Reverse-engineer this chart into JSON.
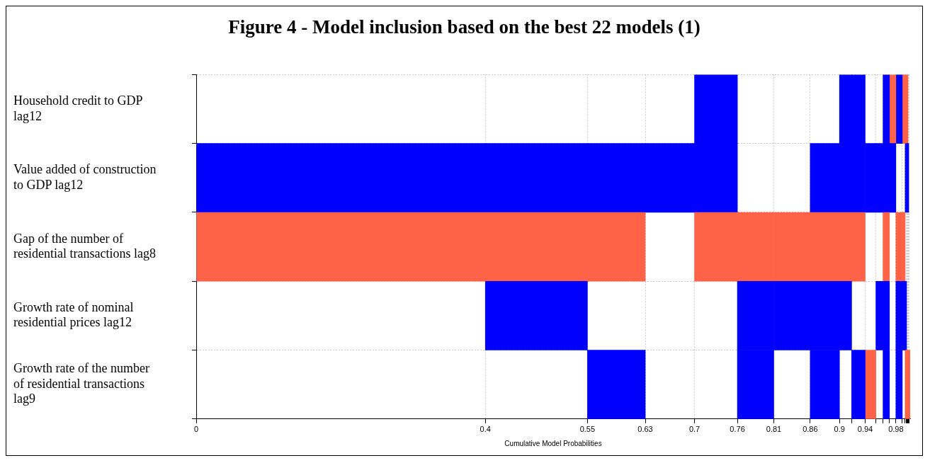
{
  "chart_data": {
    "type": "bar",
    "orientation": "horizontal",
    "title": "Figure 4 - Model inclusion based on the best 22 models (1)",
    "xlabel": "Cumulative Model Probabilities",
    "categories": [
      "Household credit to GDP lag12",
      "Value added of construction to GDP lag12",
      "Gap of the number of residential transactions lag8",
      "Growth rate of nominal residential prices lag12",
      "Growth rate of the number of residential transactions lag9"
    ],
    "xlim": [
      0,
      1
    ],
    "xticks": [
      0,
      {
        "value": 0.405,
        "label": "0.4"
      },
      {
        "value": 0.548,
        "label": "0.55"
      },
      {
        "value": 0.629,
        "label": "0.63"
      },
      {
        "value": 0.698,
        "label": "0.7"
      },
      {
        "value": 0.758,
        "label": "0.76"
      },
      {
        "value": 0.809,
        "label": "0.81"
      },
      {
        "value": 0.86,
        "label": "0.86"
      },
      {
        "value": 0.901,
        "label": "0.9"
      },
      {
        "value": 0.918,
        "label": null
      },
      {
        "value": 0.937,
        "label": "0.94"
      },
      {
        "value": 0.952,
        "label": null
      },
      {
        "value": 0.962,
        "label": null
      },
      {
        "value": 0.971,
        "label": null
      },
      {
        "value": 0.98,
        "label": "0.98"
      },
      {
        "value": 0.989,
        "label": null
      },
      {
        "value": 0.993,
        "label": null
      },
      {
        "value": 0.995,
        "label": null
      },
      {
        "value": 0.996,
        "label": null
      },
      {
        "value": 0.997,
        "label": null
      },
      {
        "value": 0.998,
        "label": null
      },
      {
        "value": 0.999,
        "label": null
      }
    ],
    "grid": true,
    "legend": false,
    "series": [
      {
        "base": [
          null,
          0,
          0,
          null,
          null
        ],
        "values": [
          null,
          0.405,
          0.405,
          null,
          null
        ],
        "colors": [
          null,
          "#0000ff",
          "#ff6347",
          null,
          null
        ]
      },
      {
        "base": [
          null,
          0.405,
          0.405,
          0.405,
          null
        ],
        "values": [
          null,
          0.143,
          0.143,
          0.143,
          null
        ],
        "colors": [
          null,
          "#0000ff",
          "#ff6347",
          "#0000ff",
          null
        ]
      },
      {
        "base": [
          null,
          0.548,
          0.548,
          null,
          0.548
        ],
        "values": [
          null,
          0.081,
          0.081,
          null,
          0.081
        ],
        "colors": [
          null,
          "#0000ff",
          "#ff6347",
          null,
          "#0000ff"
        ]
      },
      {
        "base": [
          null,
          0.629,
          null,
          null,
          null
        ],
        "values": [
          null,
          0.069,
          null,
          null,
          null
        ],
        "colors": [
          null,
          "#0000ff",
          null,
          null,
          null
        ]
      },
      {
        "base": [
          0.698,
          0.698,
          0.698,
          null,
          null
        ],
        "values": [
          0.06,
          0.06,
          0.06,
          null,
          null
        ],
        "colors": [
          "#0000ff",
          "#0000ff",
          "#ff6347",
          null,
          null
        ]
      },
      {
        "base": [
          null,
          null,
          0.758,
          0.758,
          0.758
        ],
        "values": [
          null,
          null,
          0.051,
          0.051,
          0.051
        ],
        "colors": [
          null,
          null,
          "#ff6347",
          "#0000ff",
          "#0000ff"
        ]
      },
      {
        "base": [
          null,
          null,
          0.809,
          0.809,
          null
        ],
        "values": [
          null,
          null,
          0.051,
          0.051,
          null
        ],
        "colors": [
          null,
          null,
          "#ff6347",
          "#0000ff",
          null
        ]
      },
      {
        "base": [
          null,
          0.86,
          0.86,
          0.86,
          0.86
        ],
        "values": [
          null,
          0.041,
          0.041,
          0.041,
          0.041
        ],
        "colors": [
          null,
          "#0000ff",
          "#ff6347",
          "#0000ff",
          "#0000ff"
        ]
      },
      {
        "base": [
          0.901,
          0.901,
          0.901,
          0.901,
          null
        ],
        "values": [
          0.017,
          0.017,
          0.017,
          0.017,
          null
        ],
        "colors": [
          "#0000ff",
          "#0000ff",
          "#ff6347",
          "#0000ff",
          null
        ]
      },
      {
        "base": [
          0.918,
          0.918,
          0.918,
          null,
          0.918
        ],
        "values": [
          0.019,
          0.019,
          0.019,
          null,
          0.019
        ],
        "colors": [
          "#0000ff",
          "#0000ff",
          "#ff6347",
          null,
          "#0000ff"
        ]
      },
      {
        "base": [
          null,
          0.937,
          null,
          null,
          0.937
        ],
        "values": [
          null,
          0.015,
          null,
          null,
          0.015
        ],
        "colors": [
          null,
          "#0000ff",
          null,
          null,
          "#ff6347"
        ]
      },
      {
        "base": [
          null,
          0.952,
          null,
          0.952,
          null
        ],
        "values": [
          null,
          0.01,
          null,
          0.01,
          null
        ],
        "colors": [
          null,
          "#0000ff",
          null,
          "#0000ff",
          null
        ]
      },
      {
        "base": [
          0.962,
          0.962,
          0.962,
          0.962,
          0.962
        ],
        "values": [
          0.009,
          0.009,
          0.009,
          0.009,
          0.009
        ],
        "colors": [
          "#0000ff",
          "#0000ff",
          "#ff6347",
          "#0000ff",
          "#0000ff"
        ]
      },
      {
        "base": [
          0.971,
          0.971,
          null,
          null,
          null
        ],
        "values": [
          0.009,
          0.009,
          null,
          null,
          null
        ],
        "colors": [
          "#ff6347",
          "#0000ff",
          null,
          null,
          null
        ]
      },
      {
        "base": [
          0.98,
          null,
          0.98,
          0.98,
          0.98
        ],
        "values": [
          0.009,
          null,
          0.009,
          0.009,
          0.009
        ],
        "colors": [
          "#0000ff",
          null,
          "#ff6347",
          "#0000ff",
          "#0000ff"
        ]
      },
      {
        "base": [
          0.989,
          null,
          0.989,
          0.989,
          null
        ],
        "values": [
          0.004,
          null,
          0.004,
          0.004,
          null
        ],
        "colors": [
          "#ff6347",
          null,
          "#ff6347",
          "#0000ff",
          null
        ]
      },
      {
        "base": [
          0.993,
          0.993,
          null,
          0.993,
          0.993
        ],
        "values": [
          0.004,
          0.005,
          null,
          0.002,
          0.007
        ],
        "colors": [
          "#ff6347",
          "#0000ff",
          null,
          "#0000ff",
          "#ff6347"
        ]
      }
    ]
  }
}
